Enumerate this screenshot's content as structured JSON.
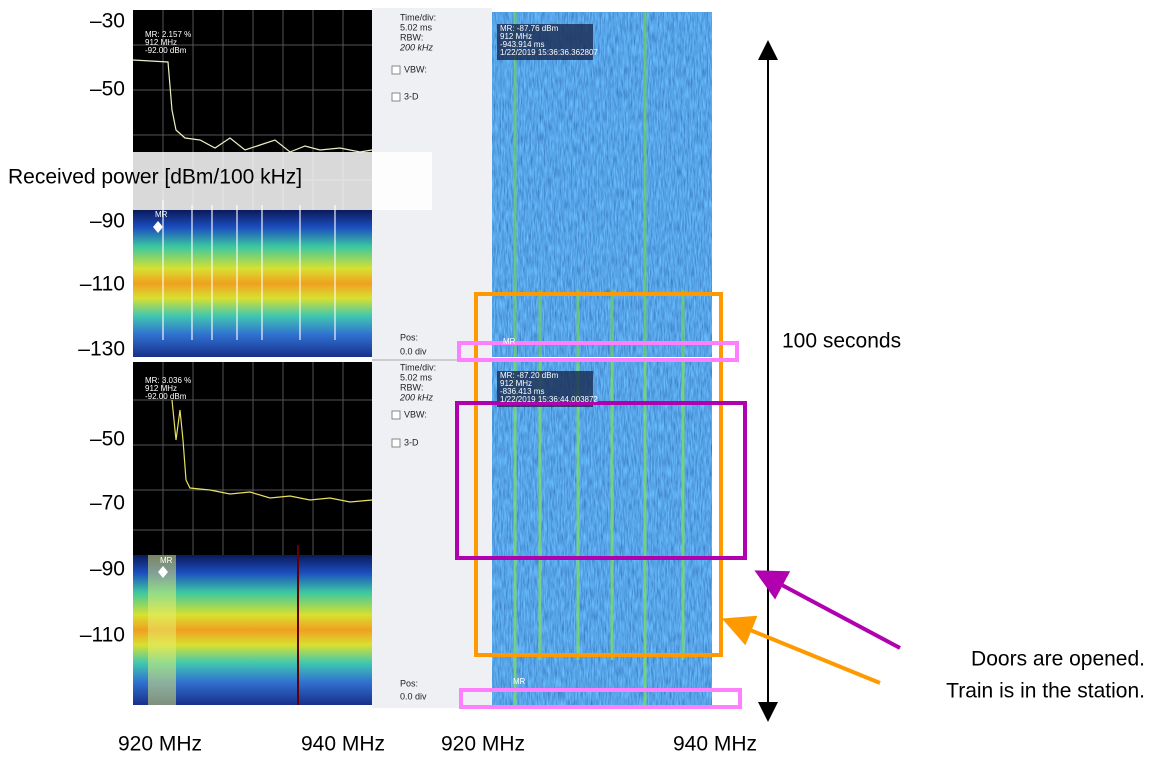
{
  "y_axis": {
    "title": "Received power [dBm/100 kHz]",
    "upper_ticks": [
      "–30",
      "–50",
      "–90",
      "–110",
      "–130"
    ],
    "lower_ticks": [
      "–50",
      "–70",
      "–90",
      "–110"
    ]
  },
  "x_axis_labels": [
    "920 MHz",
    "940 MHz",
    "920 MHz",
    "940 MHz"
  ],
  "upper": {
    "spectrum_readout": [
      "MR: 2.157 %",
      "912 MHz",
      "-92.00 dBm"
    ],
    "marker": "MR",
    "controls": [
      "Time/div:",
      "5.02 ms",
      "RBW:",
      "200 kHz",
      "VBW:",
      "3-D",
      "Pos:",
      "0.0 div"
    ],
    "waterfall_readout": [
      "MR: -87.76 dBm",
      "912 MHz",
      "-943.914 ms",
      "1/22/2019 15:36:36.362807"
    ],
    "waterfall_marker": "MR"
  },
  "lower": {
    "spectrum_readout": [
      "MR: 3.036 %",
      "912 MHz",
      "-92.00 dBm"
    ],
    "marker": "MR",
    "controls": [
      "Time/div:",
      "5.02 ms",
      "RBW:",
      "200 kHz",
      "VBW:",
      "3-D",
      "Pos:",
      "0.0 div"
    ],
    "waterfall_readout": [
      "MR: -87.20 dBm",
      "912 MHz",
      "-836.413 ms",
      "1/22/2019 15:36:44.003872"
    ],
    "waterfall_marker": "MR"
  },
  "annotations": {
    "duration": "100 seconds",
    "doors": "Doors are opened.",
    "train": "Train is in the station."
  }
}
